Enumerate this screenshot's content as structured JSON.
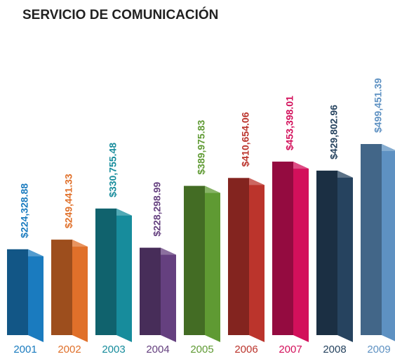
{
  "chart_data": {
    "type": "bar",
    "title": "SERVICIO DE COMUNICACIÓN",
    "categories": [
      "2001",
      "2002",
      "2003",
      "2004",
      "2005",
      "2006",
      "2007",
      "2008",
      "2009"
    ],
    "values": [
      224328.88,
      249441.33,
      330755.48,
      228298.99,
      389975.83,
      410654.06,
      453398.01,
      429802.96,
      499451.39
    ],
    "value_labels": [
      "$224,328.88",
      "$249,441.33",
      "$330,755.48",
      "$228,298.99",
      "$389,975.83",
      "$410,654.06",
      "$453,398.01",
      "$429,802.96",
      "$499,451.39"
    ],
    "colors": [
      "#1a7bbf",
      "#e0702a",
      "#178c9c",
      "#65407f",
      "#5f9a33",
      "#bb342c",
      "#d3105b",
      "#26435f",
      "#5e91c2"
    ]
  }
}
